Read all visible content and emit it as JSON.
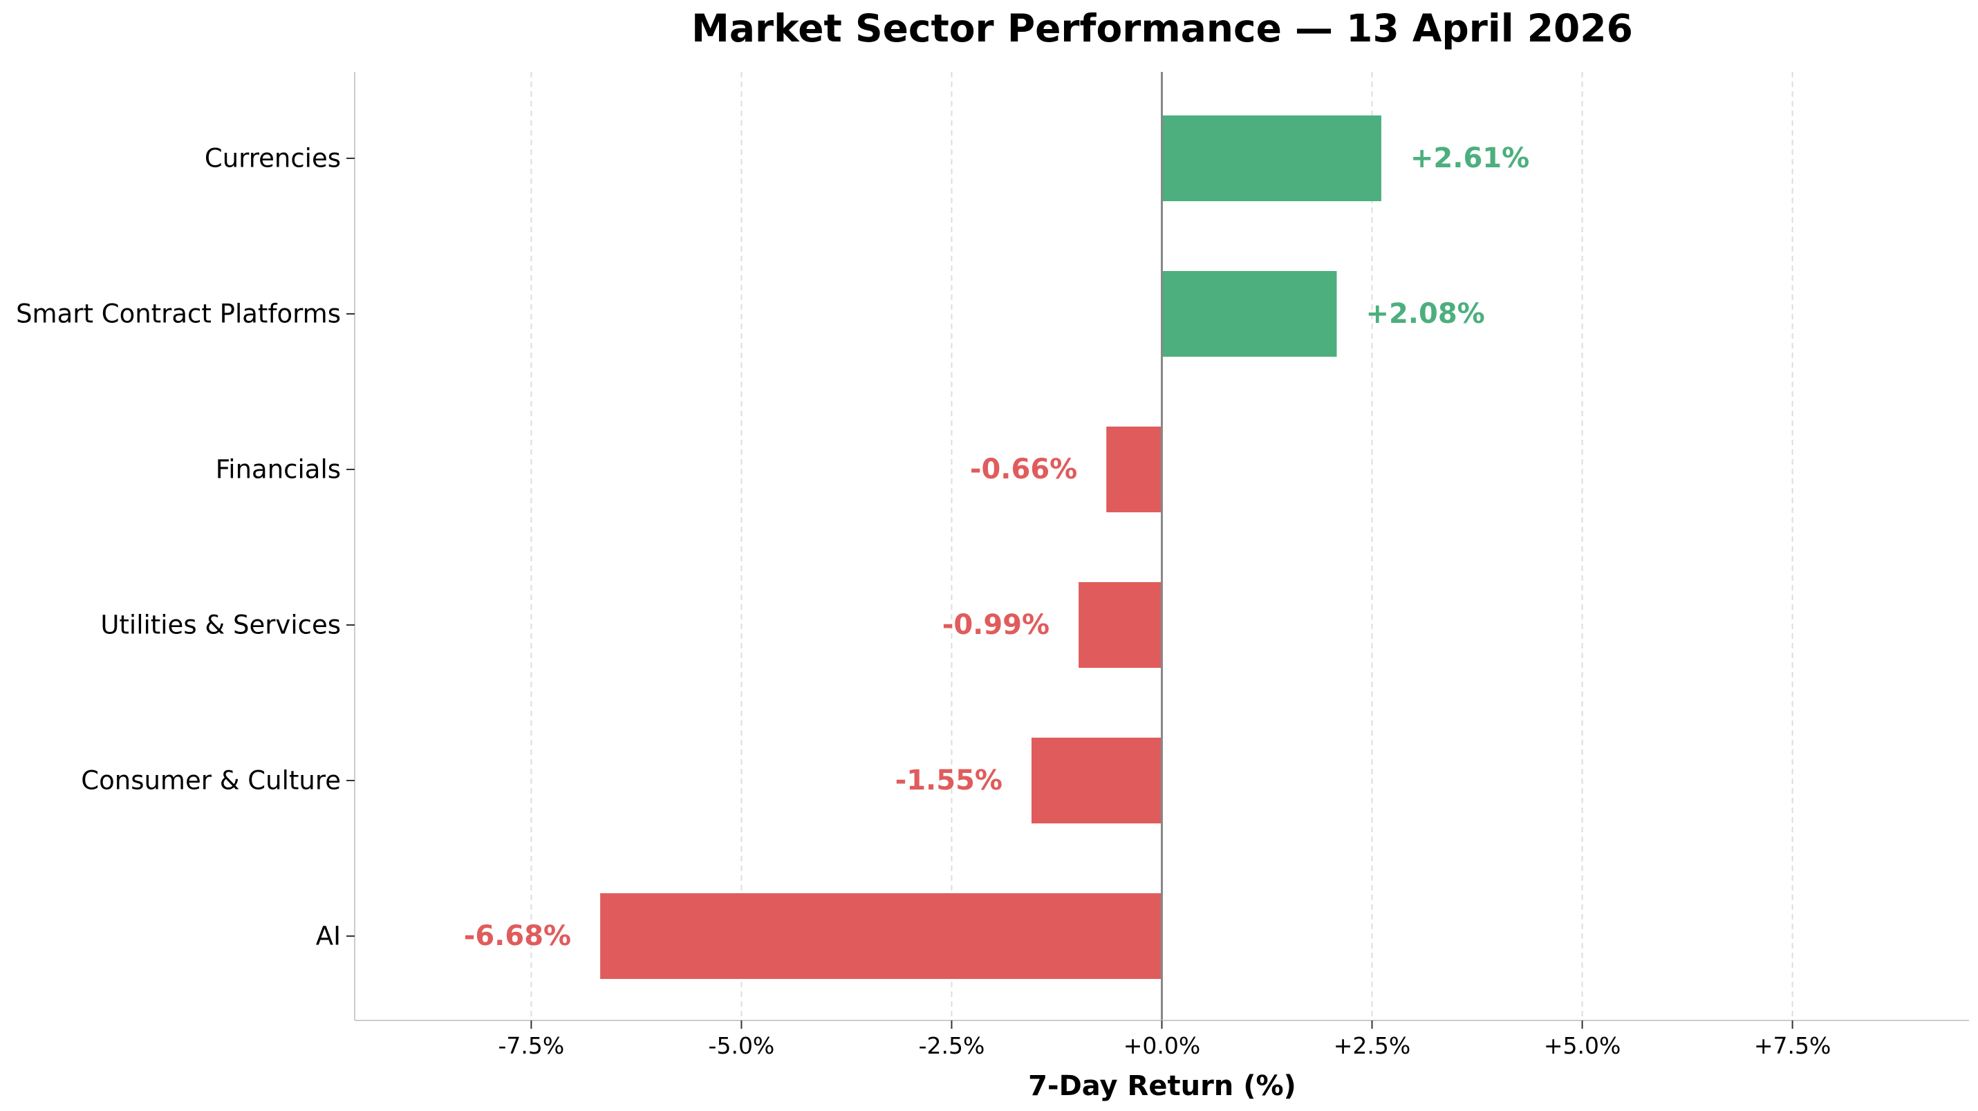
{
  "chart_data": {
    "type": "bar",
    "orientation": "horizontal",
    "title": "Market Sector Performance  —  13 April 2026",
    "xlabel": "7-Day Return (%)",
    "ylabel": "",
    "categories": [
      "Currencies",
      "Smart Contract Platforms",
      "Financials",
      "Utilities & Services",
      "Consumer & Culture",
      "AI"
    ],
    "values": [
      2.61,
      2.08,
      -0.66,
      -0.99,
      -1.55,
      -6.68
    ],
    "value_labels": [
      "+2.61%",
      "+2.08%",
      "-0.66%",
      "-0.99%",
      "-1.55%",
      "-6.68%"
    ],
    "xlim": [
      -9.6,
      9.6
    ],
    "xticks": [
      -7.5,
      -5.0,
      -2.5,
      0.0,
      2.5,
      5.0,
      7.5
    ],
    "xtick_labels": [
      "-7.5%",
      "-5.0%",
      "-2.5%",
      "+0.0%",
      "+2.5%",
      "+5.0%",
      "+7.5%"
    ],
    "grid": "vertical dashed",
    "legend": "none",
    "colors": {
      "positive": "#4caf7d",
      "negative": "#e05c5c",
      "zero_line": "#888888",
      "grid": "#dddddd",
      "spine": "#cccccc"
    }
  }
}
